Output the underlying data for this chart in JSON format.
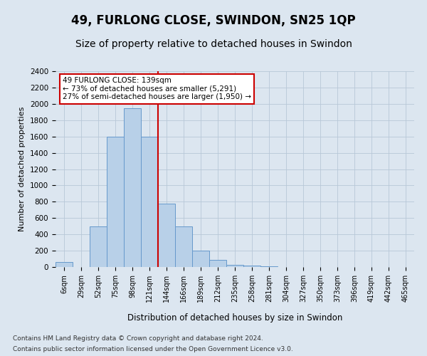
{
  "title": "49, FURLONG CLOSE, SWINDON, SN25 1QP",
  "subtitle": "Size of property relative to detached houses in Swindon",
  "xlabel": "Distribution of detached houses by size in Swindon",
  "ylabel": "Number of detached properties",
  "footer1": "Contains HM Land Registry data © Crown copyright and database right 2024.",
  "footer2": "Contains public sector information licensed under the Open Government Licence v3.0.",
  "categories": [
    "6sqm",
    "29sqm",
    "52sqm",
    "75sqm",
    "98sqm",
    "121sqm",
    "144sqm",
    "166sqm",
    "189sqm",
    "212sqm",
    "235sqm",
    "258sqm",
    "281sqm",
    "304sqm",
    "327sqm",
    "350sqm",
    "373sqm",
    "396sqm",
    "419sqm",
    "442sqm",
    "465sqm"
  ],
  "values": [
    60,
    0,
    500,
    1600,
    1950,
    1600,
    780,
    500,
    200,
    90,
    30,
    20,
    10,
    0,
    0,
    0,
    0,
    0,
    0,
    0,
    0
  ],
  "bar_color": "#b8d0e8",
  "bar_edge_color": "#6699cc",
  "vline_after_index": 5,
  "vline_color": "#cc0000",
  "annotation_text": "49 FURLONG CLOSE: 139sqm\n← 73% of detached houses are smaller (5,291)\n27% of semi-detached houses are larger (1,950) →",
  "annotation_box_color": "white",
  "annotation_box_edge": "#cc0000",
  "ylim": [
    0,
    2400
  ],
  "yticks": [
    0,
    200,
    400,
    600,
    800,
    1000,
    1200,
    1400,
    1600,
    1800,
    2000,
    2200,
    2400
  ],
  "grid_color": "#b8c8d8",
  "background_color": "#dce6f0",
  "title_fontsize": 12,
  "subtitle_fontsize": 10,
  "footer_fontsize": 6.5
}
